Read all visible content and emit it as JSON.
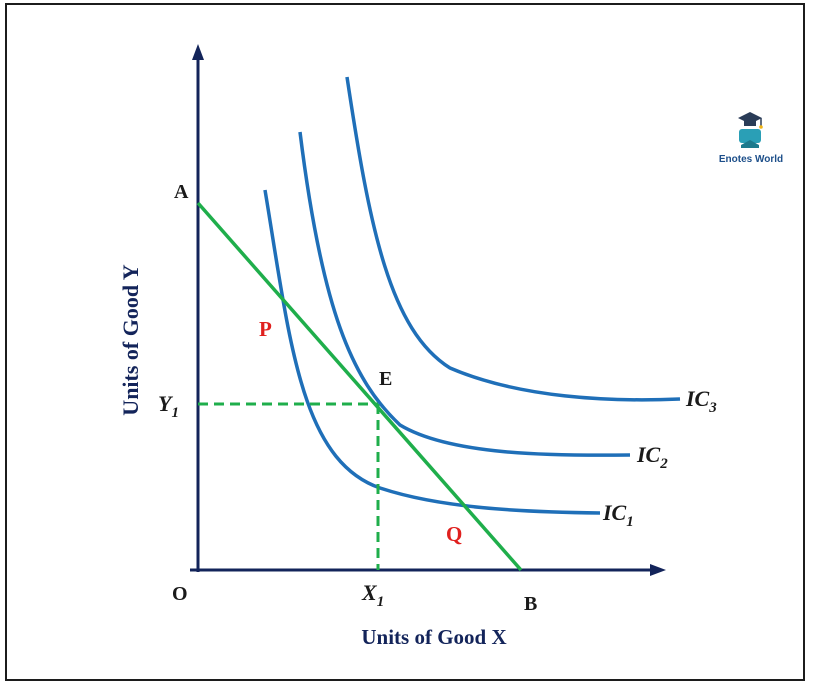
{
  "diagram": {
    "points": {
      "A": "A",
      "B": "B",
      "O": "O",
      "E": "E",
      "P": "P",
      "Q": "Q"
    },
    "y1": {
      "base": "Y",
      "sub": "1"
    },
    "x1": {
      "base": "X",
      "sub": "1"
    },
    "curves": [
      {
        "base": "IC",
        "sub": "1"
      },
      {
        "base": "IC",
        "sub": "2"
      },
      {
        "base": "IC",
        "sub": "3"
      }
    ],
    "axes": {
      "x_label": "Units of Good X",
      "y_label": "Units of Good Y"
    },
    "logo_text": "Enotes World",
    "colors": {
      "axis": "#13245a",
      "indifference_curve": "#1f6fb8",
      "budget_line": "#1fae4b",
      "guide_dashed": "#1fae4b",
      "highlight_points": "#e0201e",
      "logo_teal": "#2a9fb6"
    }
  }
}
